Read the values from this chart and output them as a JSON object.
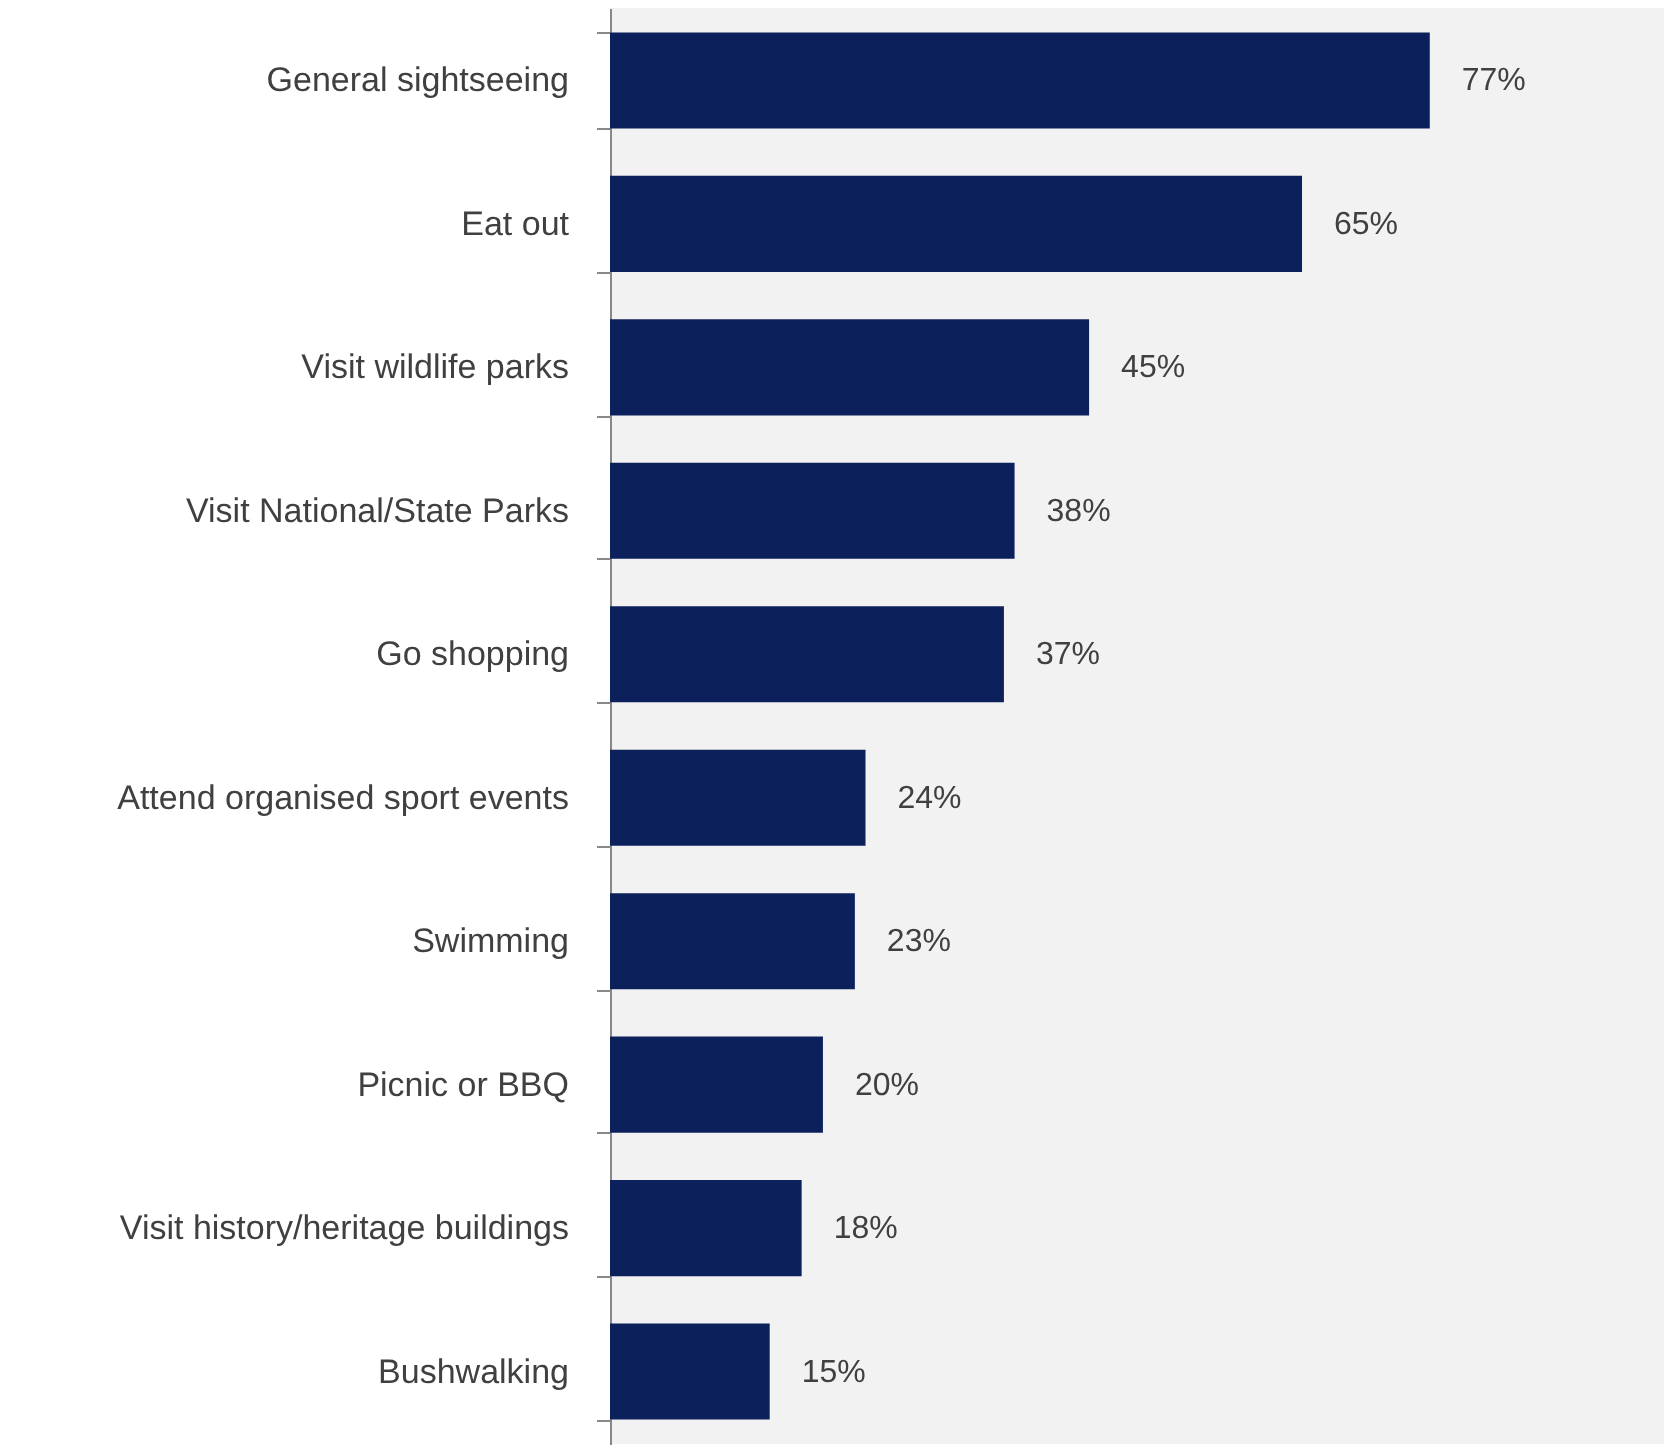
{
  "chart_data": {
    "type": "bar",
    "orientation": "horizontal",
    "categories": [
      "General sightseeing",
      "Eat out",
      "Visit wildlife parks",
      "Visit National/State Parks",
      "Go shopping",
      "Attend organised sport events",
      "Swimming",
      "Picnic or BBQ",
      "Visit history/heritage buildings",
      "Bushwalking"
    ],
    "values": [
      77,
      65,
      45,
      38,
      37,
      24,
      23,
      20,
      18,
      15
    ],
    "value_labels": [
      "77%",
      "65%",
      "45%",
      "38%",
      "37%",
      "24%",
      "23%",
      "20%",
      "18%",
      "15%"
    ],
    "color": "#0c215b",
    "xlim": [
      0,
      99
    ],
    "tick_labels": "y"
  }
}
